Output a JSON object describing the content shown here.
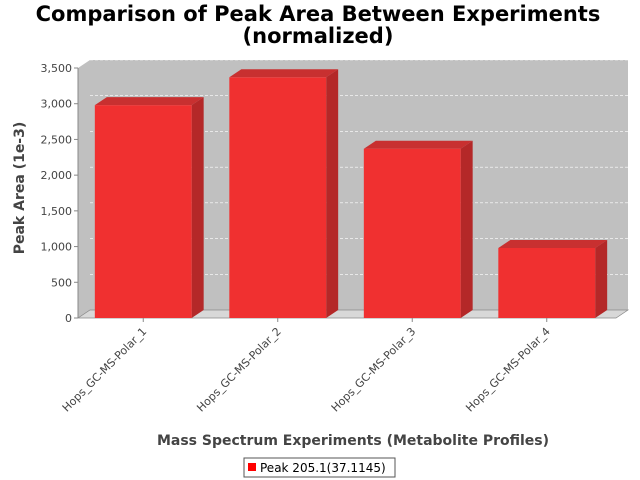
{
  "chart_data": {
    "type": "bar",
    "title_line1": "Comparison of Peak Area Between Experiments",
    "title_line2": "(normalized)",
    "xlabel": "Mass Spectrum Experiments (Metabolite Profiles)",
    "ylabel": "Peak Area (1e-3)",
    "categories": [
      "Hops_GC-MS-Polar_1",
      "Hops_GC-MS-Polar_2",
      "Hops_GC-MS-Polar_3",
      "Hops_GC-MS-Polar_4"
    ],
    "series": [
      {
        "name": "Peak 205.1(37.1145)",
        "values": [
          2980,
          3370,
          2370,
          980
        ]
      }
    ],
    "ylim": [
      0,
      3500
    ],
    "yticks": [
      0,
      500,
      1000,
      1500,
      2000,
      2500,
      3000,
      3500
    ],
    "ytick_labels": [
      "0",
      "500",
      "1,000",
      "1,500",
      "2,000",
      "2,500",
      "3,000",
      "3,500"
    ],
    "grid": true,
    "legend_position": "bottom",
    "colors": {
      "bar_front": "#f03030",
      "bar_side": "#b42828",
      "bar_top": "#c83030",
      "plot_back": "#c0c0c0",
      "plot_floor": "#d8d8d8"
    }
  }
}
